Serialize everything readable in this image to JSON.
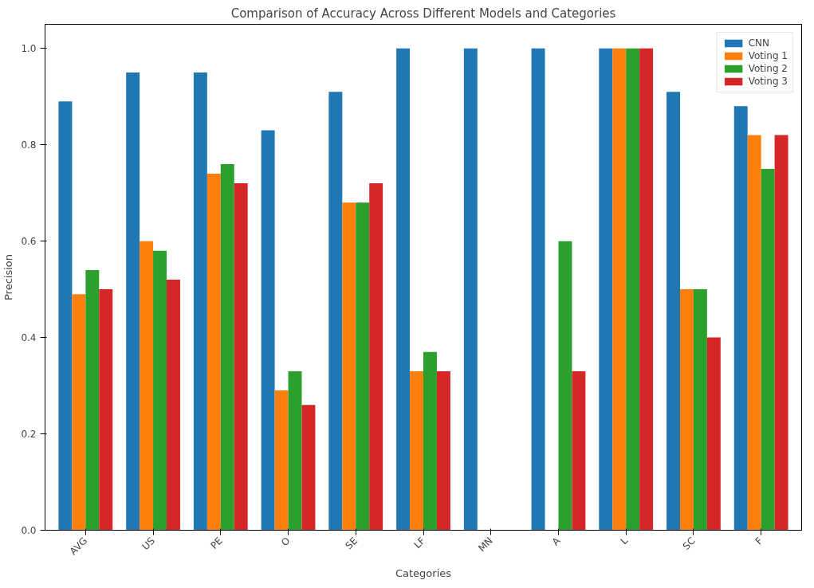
{
  "chart_data": {
    "type": "bar",
    "title": "Comparison of Accuracy Across Different Models and Categories",
    "xlabel": "Categories",
    "ylabel": "Precision",
    "categories": [
      "AVG",
      "US",
      "PE",
      "O",
      "SE",
      "LF",
      "MN",
      "A",
      "L",
      "SC",
      "F"
    ],
    "series": [
      {
        "name": "CNN",
        "color": "#1f77b4",
        "values": [
          0.89,
          0.95,
          0.95,
          0.83,
          0.91,
          1.0,
          1.0,
          1.0,
          1.0,
          0.91,
          0.88
        ]
      },
      {
        "name": "Voting 1",
        "color": "#ff7f0e",
        "values": [
          0.49,
          0.6,
          0.74,
          0.29,
          0.68,
          0.33,
          0,
          0,
          1.0,
          0.5,
          0.82
        ]
      },
      {
        "name": "Voting 2",
        "color": "#2ca02c",
        "values": [
          0.54,
          0.58,
          0.76,
          0.33,
          0.68,
          0.37,
          0,
          0.6,
          1.0,
          0.5,
          0.75
        ]
      },
      {
        "name": "Voting 3",
        "color": "#d62728",
        "values": [
          0.5,
          0.52,
          0.72,
          0.26,
          0.72,
          0.33,
          0,
          0.33,
          1.0,
          0.4,
          0.82
        ]
      }
    ],
    "ylim": [
      0,
      1.05
    ],
    "yticks": [
      {
        "value": 0,
        "label": "0.0"
      },
      0.2,
      0.4,
      0.6,
      0.8,
      {
        "value": 1,
        "label": "1.0"
      }
    ],
    "grid": false,
    "legend": "top right"
  }
}
